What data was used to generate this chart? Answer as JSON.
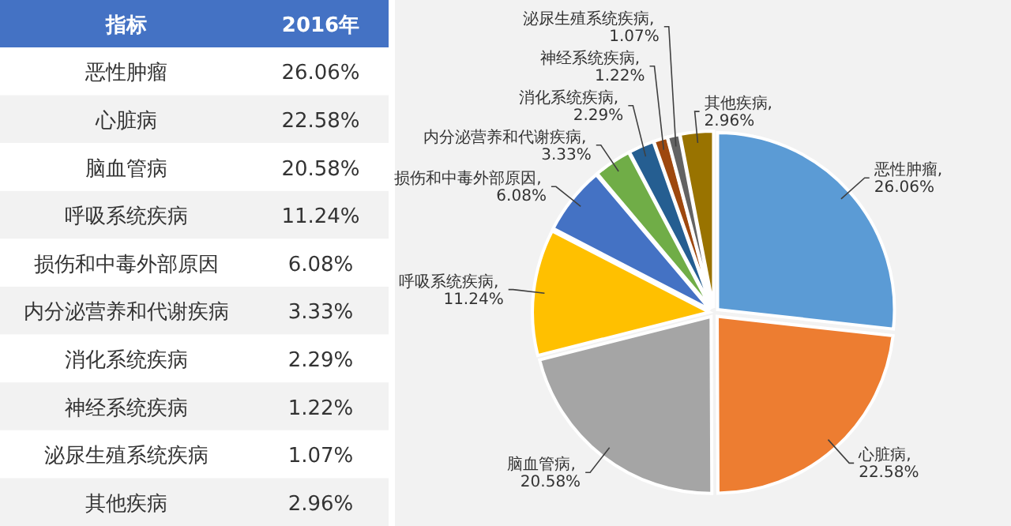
{
  "chart_data": [
    {
      "type": "other",
      "annotations": [
        "指标",
        "2016年",
        "恶性肿瘤",
        "26.06%",
        "心脏病",
        "22.58%",
        "脑血管病",
        "20.58%",
        "呼吸系统疾病",
        "11.24%",
        "损伤和中毒外部原因",
        "6.08%",
        "内分泌营养和代谢疾病",
        "3.33%",
        "消化系统疾病",
        "2.29%",
        "神经系统疾病",
        "1.22%",
        "泌尿生殖系统疾病",
        "1.07%",
        "其他疾病",
        "2.96%"
      ]
    },
    {
      "type": "pie",
      "categories": [
        "恶性肿瘤",
        "心脏病",
        "脑血管病",
        "呼吸系统疾病",
        "损伤和中毒外部原因",
        "内分泌营养和代谢疾病",
        "消化系统疾病",
        "神经系统疾病",
        "泌尿生殖系统疾病",
        "其他疾病"
      ],
      "values": [
        26.06,
        22.58,
        20.58,
        11.24,
        6.08,
        3.33,
        2.29,
        1.22,
        1.07,
        2.96
      ],
      "value_labels": [
        ", 26.06%",
        ", 22.58%",
        ", 20.58%",
        ", 11.24%",
        ", 6.08%",
        ", 3.33%",
        ", 2.29%",
        ", 1.22%",
        ", 1.07%",
        ", 2.96%"
      ],
      "colors": [
        "#5b9bd5",
        "#ed7d31",
        "#a5a5a5",
        "#ffc000",
        "#4472c4",
        "#70ad47",
        "#255e91",
        "#9e480e",
        "#636363",
        "#997300"
      ]
    }
  ]
}
